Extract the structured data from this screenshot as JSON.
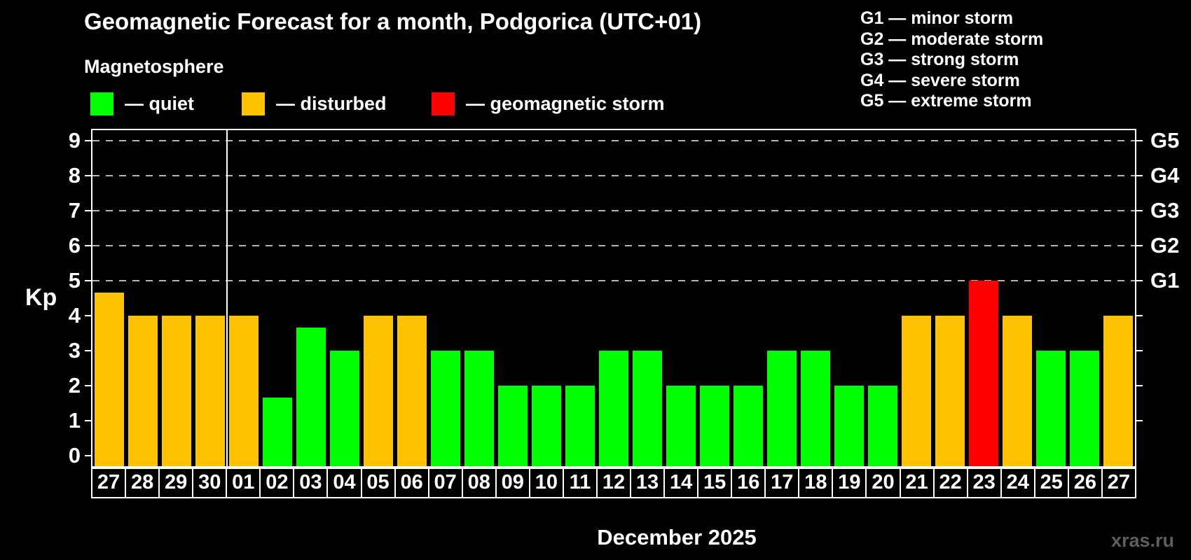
{
  "header": {
    "title": "Geomagnetic Forecast for a month, Podgorica (UTC+01)",
    "subtitle": "Magnetosphere"
  },
  "legend": {
    "items": [
      {
        "name": "quiet",
        "swatch_color": "#00ff00",
        "label": "— quiet"
      },
      {
        "name": "disturbed",
        "swatch_color": "#ffc200",
        "label": "— disturbed"
      },
      {
        "name": "storm",
        "swatch_color": "#ff0000",
        "label": "— geomagnetic storm"
      }
    ]
  },
  "g_scale_legend": {
    "lines": [
      "G1 — minor storm",
      "G2 — moderate storm",
      "G3 — strong storm",
      "G4 — severe storm",
      "G5 — extreme storm"
    ]
  },
  "watermark": "xras.ru",
  "chart_data": {
    "type": "bar",
    "title": "Geomagnetic Forecast for a month, Podgorica (UTC+01)",
    "subtitle": "Magnetosphere",
    "ylabel": "Kp",
    "xlabel": "December 2025",
    "categories": [
      "27",
      "28",
      "29",
      "30",
      "01",
      "02",
      "03",
      "04",
      "05",
      "06",
      "07",
      "08",
      "09",
      "10",
      "11",
      "12",
      "13",
      "14",
      "15",
      "16",
      "17",
      "18",
      "19",
      "20",
      "21",
      "22",
      "23",
      "24",
      "25",
      "26",
      "27"
    ],
    "values": [
      4.67,
      4,
      4,
      4,
      4,
      1.67,
      3.67,
      3,
      4,
      4,
      3,
      3,
      2,
      2,
      2,
      3,
      3,
      2,
      2,
      2,
      3,
      3,
      2,
      2,
      4,
      4,
      5,
      4,
      3,
      3,
      4
    ],
    "statuses": [
      "disturbed",
      "disturbed",
      "disturbed",
      "disturbed",
      "disturbed",
      "quiet",
      "quiet",
      "quiet",
      "disturbed",
      "disturbed",
      "quiet",
      "quiet",
      "quiet",
      "quiet",
      "quiet",
      "quiet",
      "quiet",
      "quiet",
      "quiet",
      "quiet",
      "quiet",
      "quiet",
      "quiet",
      "quiet",
      "disturbed",
      "disturbed",
      "storm",
      "disturbed",
      "quiet",
      "quiet",
      "disturbed"
    ],
    "status_colors": {
      "quiet": "#00ff00",
      "disturbed": "#ffc200",
      "storm": "#ff0000"
    },
    "y_ticks_left": [
      0,
      1,
      2,
      3,
      4,
      5,
      6,
      7,
      8,
      9
    ],
    "y_ticks_right": [
      1,
      2,
      3,
      4,
      5,
      6,
      7,
      8,
      9
    ],
    "right_axis_labels": [
      {
        "kp": 5,
        "label": "G1"
      },
      {
        "kp": 6,
        "label": "G2"
      },
      {
        "kp": 7,
        "label": "G3"
      },
      {
        "kp": 8,
        "label": "G4"
      },
      {
        "kp": 9,
        "label": "G5"
      }
    ],
    "gridline_levels": [
      5,
      6,
      7,
      8,
      9
    ],
    "ylim": [
      -0.3,
      9.6
    ],
    "month_boundary_after_index": 3,
    "grid": "dashed horizontal gridlines at Kp 5–9 only",
    "legend_position": "top-left"
  }
}
